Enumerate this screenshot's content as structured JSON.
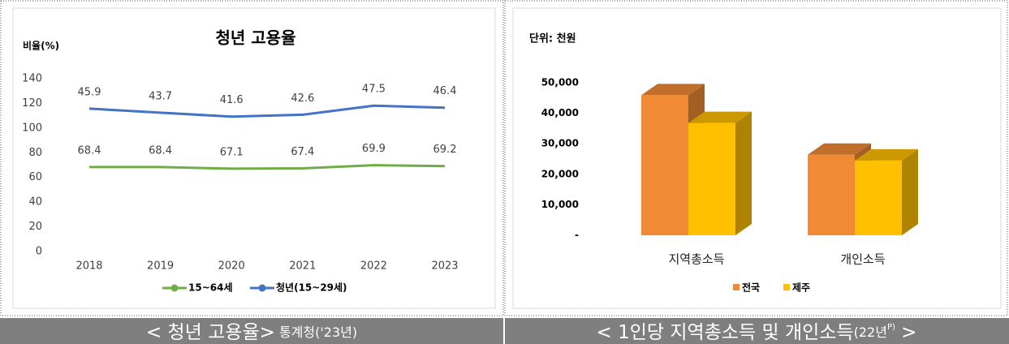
{
  "chart_data": [
    {
      "type": "line",
      "title": "청년 고용율",
      "y_label": "비율(%)",
      "categories": [
        "2018",
        "2019",
        "2020",
        "2021",
        "2022",
        "2023"
      ],
      "ylim": [
        0,
        140
      ],
      "yticks": [
        0,
        20,
        40,
        60,
        80,
        100,
        120,
        140
      ],
      "y2lim": [
        -31,
        62
      ],
      "series": [
        {
          "name": "15~64세",
          "color": "#70ad47",
          "values": [
            68.4,
            68.4,
            67.1,
            67.4,
            69.9,
            69.2
          ]
        },
        {
          "name": "청년(15~29세)",
          "color": "#4472c4",
          "axis": "y2",
          "values": [
            45.9,
            43.7,
            41.6,
            42.6,
            47.5,
            46.4
          ]
        }
      ],
      "legend": "bottom"
    },
    {
      "type": "bar3d",
      "y_label": "단위: 천원",
      "categories": [
        "지역총소득",
        "개인소득"
      ],
      "ylim": [
        0,
        50000
      ],
      "yticks": [
        {
          "value": 0,
          "label": "-"
        },
        {
          "value": 10000,
          "label": "10,000"
        },
        {
          "value": 20000,
          "label": "20,000"
        },
        {
          "value": 30000,
          "label": "30,000"
        },
        {
          "value": 40000,
          "label": "40,000"
        },
        {
          "value": 50000,
          "label": "50,000"
        }
      ],
      "series": [
        {
          "name": "전국",
          "color": "#f08a35",
          "values": [
            45900,
            26400
          ]
        },
        {
          "name": "제주",
          "color": "#ffc000",
          "values": [
            36800,
            24500
          ]
        }
      ],
      "legend": "bottom"
    }
  ],
  "captions": [
    [
      "< 청년  고용율>",
      " 통계청('23년)"
    ],
    [
      "< 1인당 지역총소득 및 개인소득",
      "(22년",
      "P)",
      " >"
    ]
  ]
}
